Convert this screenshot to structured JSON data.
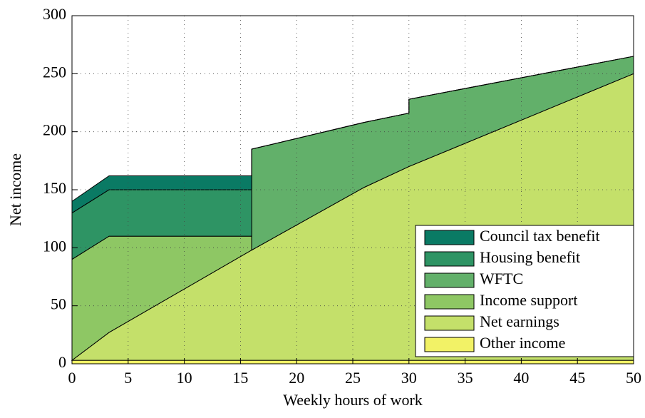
{
  "chart_data": {
    "type": "stacked_area",
    "x_label": "Weekly hours of work",
    "y_label": "Net income",
    "x": [
      0,
      3.3,
      16,
      16,
      26,
      30,
      30,
      50
    ],
    "series": [
      {
        "name": "Other income",
        "color": "#f2f266",
        "values": [
          3,
          3,
          3,
          3,
          3,
          3,
          3,
          3
        ]
      },
      {
        "name": "Net earnings",
        "color": "#c4e06a",
        "values": [
          0,
          24,
          95,
          95,
          149,
          167,
          167,
          247
        ]
      },
      {
        "name": "Income support",
        "color": "#8ec764",
        "values": [
          87,
          83,
          12,
          0,
          0,
          0,
          0,
          0
        ]
      },
      {
        "name": "WFTC",
        "color": "#62b06a",
        "values": [
          0,
          0,
          0,
          87,
          56,
          46,
          58,
          15
        ]
      },
      {
        "name": "Housing benefit",
        "color": "#2e9464",
        "values": [
          40,
          40,
          40,
          0,
          0,
          0,
          0,
          0
        ]
      },
      {
        "name": "Council tax benefit",
        "color": "#0a7a64",
        "values": [
          10,
          12,
          12,
          0,
          0,
          0,
          0,
          0
        ]
      }
    ],
    "xlim": [
      0,
      50
    ],
    "xticks": [
      0,
      5,
      10,
      15,
      20,
      25,
      30,
      35,
      40,
      45,
      50
    ],
    "ylim": [
      0,
      300
    ],
    "yticks": [
      0,
      50,
      100,
      150,
      200,
      250,
      300
    ],
    "grid": true,
    "legend_position": "lower right"
  }
}
